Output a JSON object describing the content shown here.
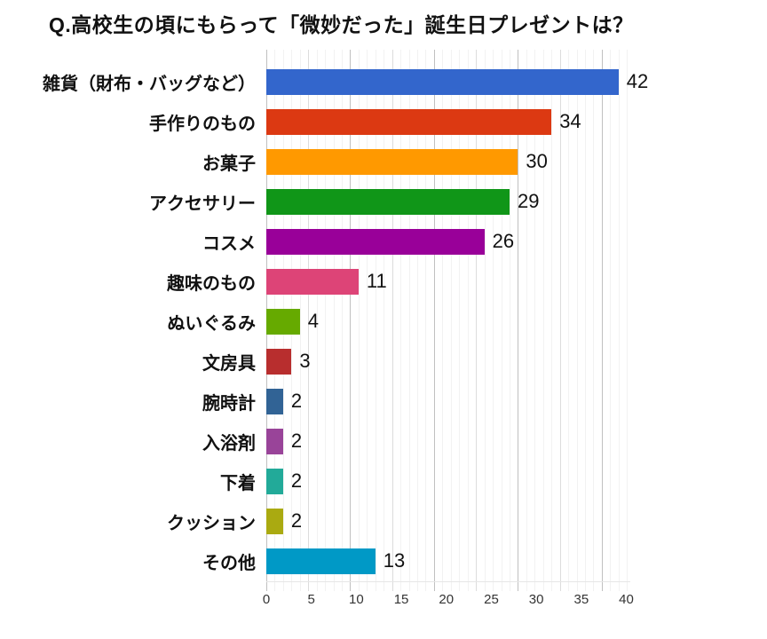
{
  "title": "Q.高校生の頃にもらって「微妙だった」誕生日プレゼントは？",
  "chart_data": {
    "type": "bar",
    "orientation": "horizontal",
    "title": "Q.高校生の頃にもらって「微妙だった」誕生日プレゼントは？",
    "categories": [
      "雑貨（財布・バッグなど）",
      "手作りのもの",
      "お菓子",
      "アクセサリー",
      "コスメ",
      "趣味のもの",
      "ぬいぐるみ",
      "文房具",
      "腕時計",
      "入浴剤",
      "下着",
      "クッション",
      "その他"
    ],
    "values": [
      42,
      34,
      30,
      29,
      26,
      11,
      4,
      3,
      2,
      2,
      2,
      2,
      13
    ],
    "bar_colors": [
      "#3366CC",
      "#DC3912",
      "#FF9900",
      "#109618",
      "#990099",
      "#DD4477",
      "#66AA00",
      "#B82E2E",
      "#316395",
      "#994499",
      "#22AA99",
      "#AAAA11",
      "#0099C6"
    ],
    "value_labels": [
      "42",
      "34",
      "30",
      "29",
      "26",
      "11",
      "4",
      "3",
      "2",
      "2",
      "2",
      "2",
      "13"
    ],
    "x_ticks": [
      0,
      5,
      10,
      15,
      20,
      25,
      30,
      35,
      40
    ],
    "xlim": [
      0,
      43.4
    ],
    "grid": "vertical minor every 1, medium every 5, major every 10",
    "legend": "none",
    "xlabel": "",
    "ylabel": ""
  }
}
